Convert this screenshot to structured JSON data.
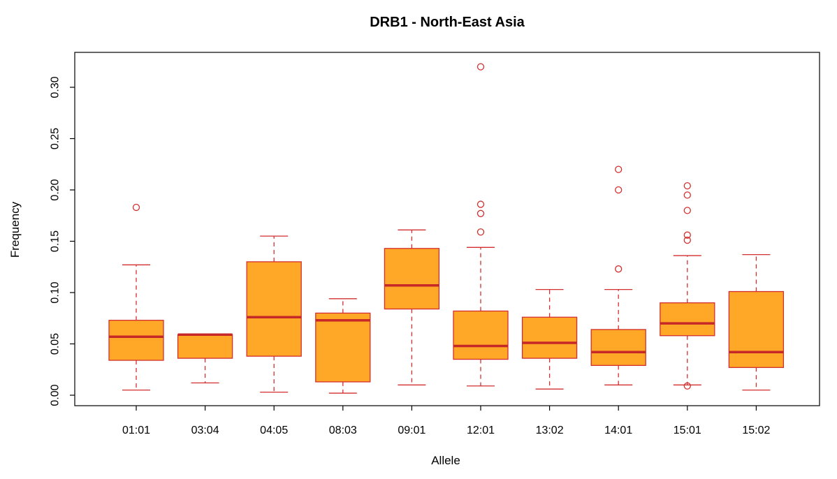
{
  "chart_data": {
    "type": "boxplot",
    "title": "DRB1 - North-East Asia",
    "xlabel": "Allele",
    "ylabel": "Frequency",
    "ylim": [
      -0.01,
      0.33
    ],
    "yticks": [
      0.0,
      0.05,
      0.1,
      0.15,
      0.2,
      0.25,
      0.3
    ],
    "ytick_labels": [
      "0.00",
      "0.05",
      "0.10",
      "0.15",
      "0.20",
      "0.25",
      "0.30"
    ],
    "categories": [
      "01:01",
      "03:04",
      "04:05",
      "08:03",
      "09:01",
      "12:01",
      "13:02",
      "14:01",
      "15:01",
      "15:02"
    ],
    "boxes": [
      {
        "category": "01:01",
        "whisker_low": 0.005,
        "q1": 0.034,
        "median": 0.057,
        "q3": 0.073,
        "whisker_high": 0.127,
        "outliers": [
          0.183
        ]
      },
      {
        "category": "03:04",
        "whisker_low": 0.012,
        "q1": 0.036,
        "median": 0.059,
        "q3": 0.059,
        "whisker_high": 0.059,
        "outliers": []
      },
      {
        "category": "04:05",
        "whisker_low": 0.003,
        "q1": 0.038,
        "median": 0.076,
        "q3": 0.13,
        "whisker_high": 0.155,
        "outliers": []
      },
      {
        "category": "08:03",
        "whisker_low": 0.002,
        "q1": 0.013,
        "median": 0.073,
        "q3": 0.08,
        "whisker_high": 0.094,
        "outliers": []
      },
      {
        "category": "09:01",
        "whisker_low": 0.01,
        "q1": 0.084,
        "median": 0.107,
        "q3": 0.143,
        "whisker_high": 0.161,
        "outliers": []
      },
      {
        "category": "12:01",
        "whisker_low": 0.009,
        "q1": 0.035,
        "median": 0.048,
        "q3": 0.082,
        "whisker_high": 0.144,
        "outliers": [
          0.159,
          0.177,
          0.186,
          0.32
        ]
      },
      {
        "category": "13:02",
        "whisker_low": 0.006,
        "q1": 0.036,
        "median": 0.051,
        "q3": 0.076,
        "whisker_high": 0.103,
        "outliers": []
      },
      {
        "category": "14:01",
        "whisker_low": 0.01,
        "q1": 0.029,
        "median": 0.042,
        "q3": 0.064,
        "whisker_high": 0.103,
        "outliers": [
          0.123,
          0.2,
          0.22
        ]
      },
      {
        "category": "15:01",
        "whisker_low": 0.01,
        "q1": 0.058,
        "median": 0.07,
        "q3": 0.09,
        "whisker_high": 0.136,
        "outliers": [
          0.009,
          0.151,
          0.156,
          0.18,
          0.195,
          0.204
        ]
      },
      {
        "category": "15:02",
        "whisker_low": 0.005,
        "q1": 0.027,
        "median": 0.042,
        "q3": 0.101,
        "whisker_high": 0.137,
        "outliers": []
      }
    ],
    "colors": {
      "box_fill": "#FFA726",
      "box_border": "#D32F2F",
      "median": "#C62828",
      "whisker": "#D32F2F",
      "outlier": "#D32F2F",
      "frame": "#000000"
    },
    "grid": false,
    "legend": "none"
  }
}
